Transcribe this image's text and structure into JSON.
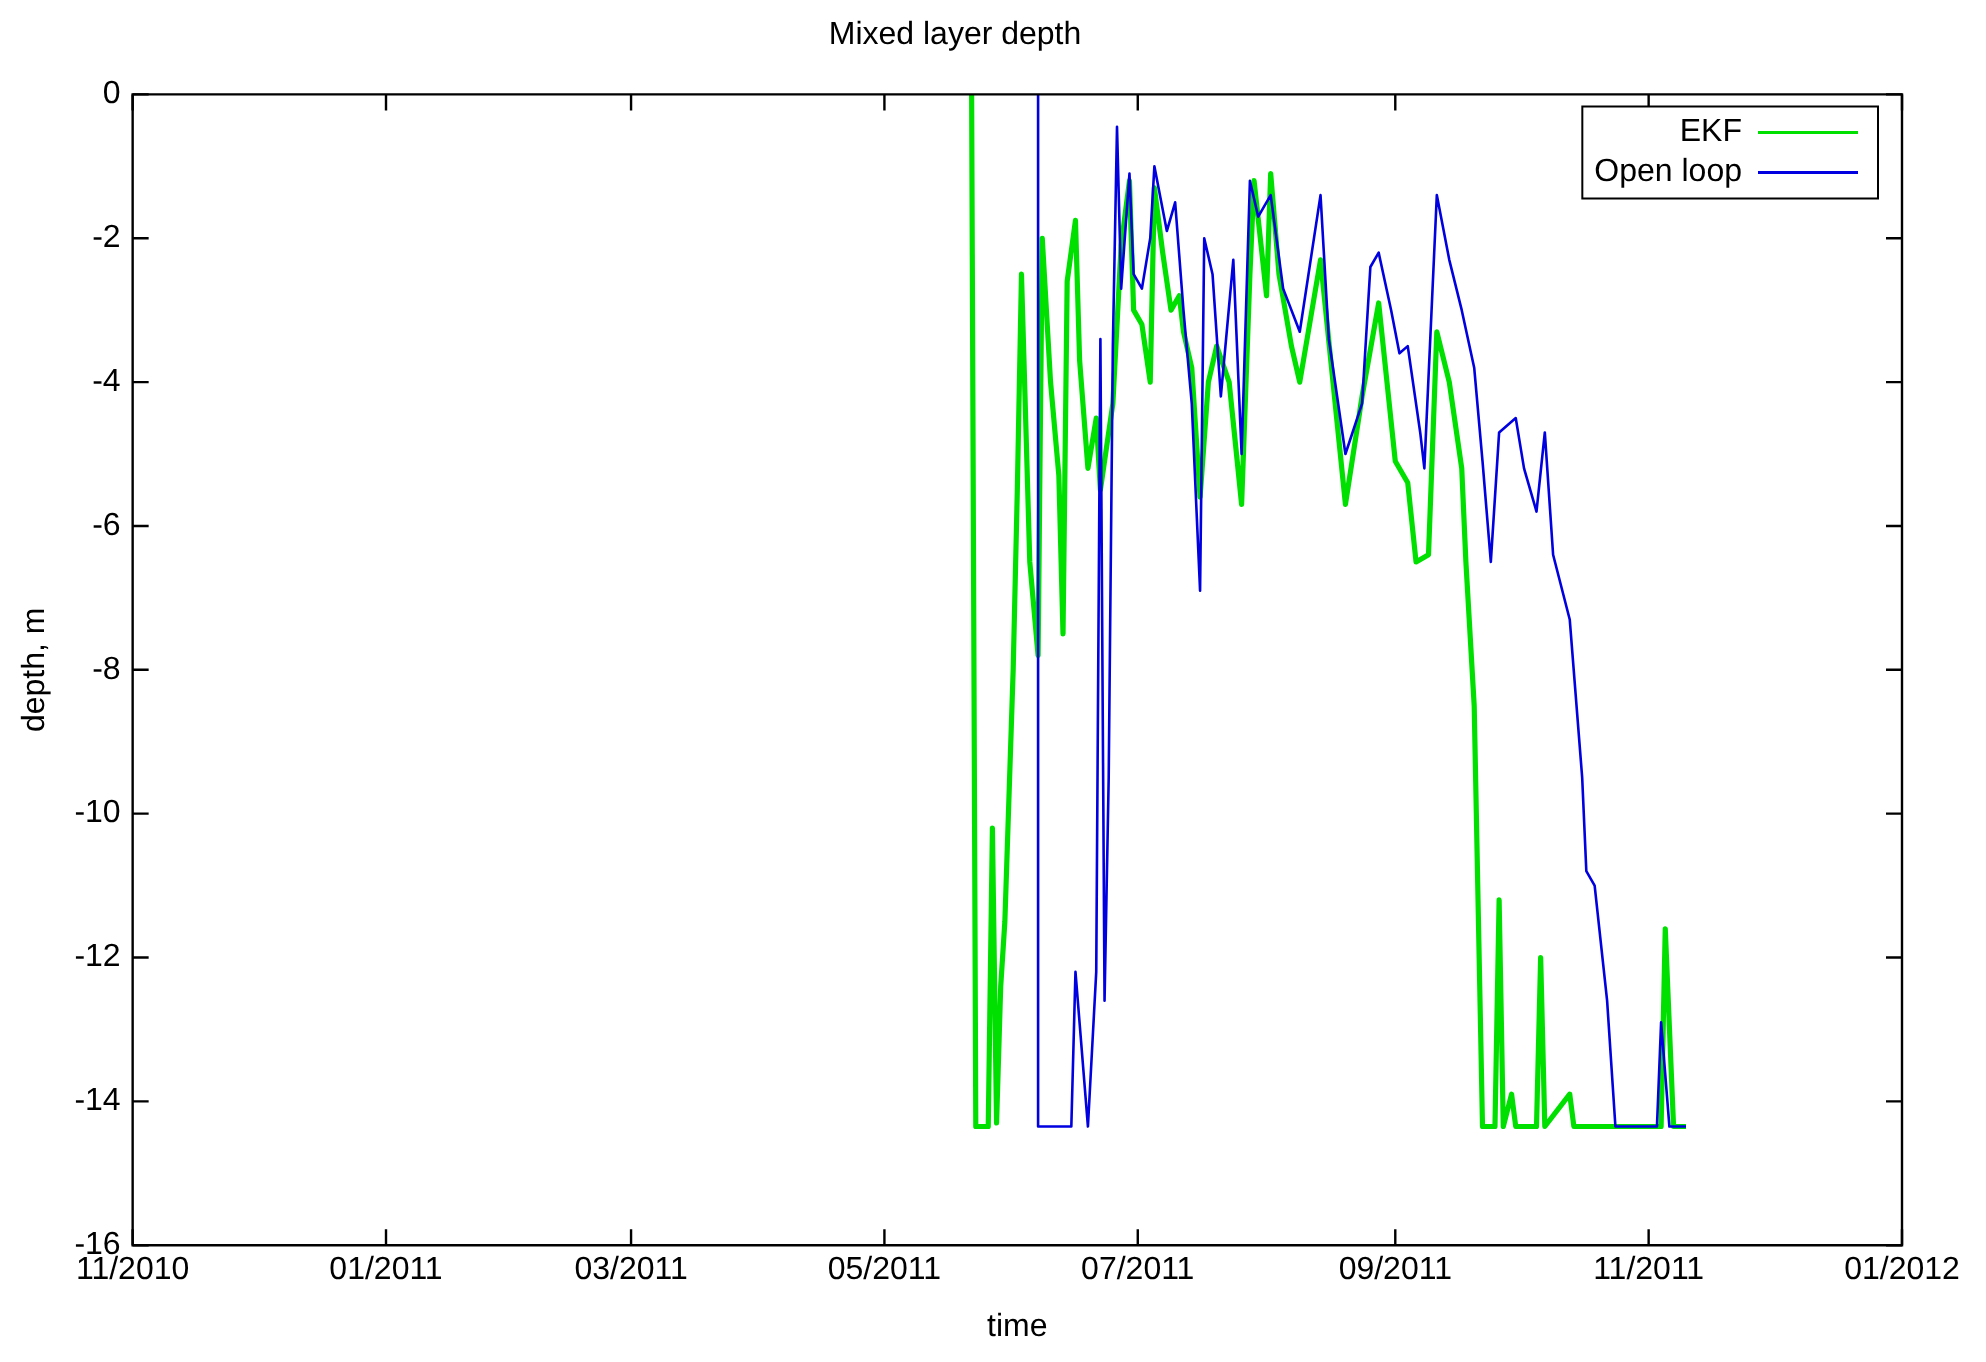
{
  "chart_data": {
    "type": "line",
    "title": "Mixed layer depth",
    "xlabel": "time",
    "ylabel": "depth, m",
    "xlim": [
      "2010-11-01",
      "2012-01-01"
    ],
    "xticks": [
      {
        "value": "2010-11-01",
        "label": "11/2010"
      },
      {
        "value": "2011-01-01",
        "label": "01/2011"
      },
      {
        "value": "2011-03-01",
        "label": "03/2011"
      },
      {
        "value": "2011-05-01",
        "label": "05/2011"
      },
      {
        "value": "2011-07-01",
        "label": "07/2011"
      },
      {
        "value": "2011-09-01",
        "label": "09/2011"
      },
      {
        "value": "2011-11-01",
        "label": "11/2011"
      },
      {
        "value": "2012-01-01",
        "label": "01/2012"
      }
    ],
    "ylim": [
      -16,
      0
    ],
    "yticks": [
      -16,
      -14,
      -12,
      -10,
      -8,
      -6,
      -4,
      -2,
      0
    ],
    "legend": "top right",
    "grid": false,
    "marker": "none",
    "line_style": "solid",
    "series": [
      {
        "name": "EKF",
        "color": "#00e000",
        "x": [
          "2011-05-22",
          "2011-05-23",
          "2011-05-26",
          "2011-05-27",
          "2011-05-28",
          "2011-05-29",
          "2011-05-30",
          "2011-06-01",
          "2011-06-02",
          "2011-06-03",
          "2011-06-05",
          "2011-06-07",
          "2011-06-08",
          "2011-06-10",
          "2011-06-12",
          "2011-06-13",
          "2011-06-14",
          "2011-06-16",
          "2011-06-17",
          "2011-06-19",
          "2011-06-21",
          "2011-06-22",
          "2011-06-25",
          "2011-06-27",
          "2011-06-29",
          "2011-06-30",
          "2011-07-02",
          "2011-07-04",
          "2011-07-05",
          "2011-07-07",
          "2011-07-09",
          "2011-07-11",
          "2011-07-12",
          "2011-07-14",
          "2011-07-16",
          "2011-07-18",
          "2011-07-20",
          "2011-07-23",
          "2011-07-26",
          "2011-07-28",
          "2011-07-29",
          "2011-08-01",
          "2011-08-02",
          "2011-08-04",
          "2011-08-07",
          "2011-08-09",
          "2011-08-14",
          "2011-08-20",
          "2011-08-24",
          "2011-08-28",
          "2011-09-01",
          "2011-09-04",
          "2011-09-06",
          "2011-09-09",
          "2011-09-11",
          "2011-09-14",
          "2011-09-17",
          "2011-09-18",
          "2011-09-20",
          "2011-09-22",
          "2011-09-25",
          "2011-09-26",
          "2011-09-27",
          "2011-09-29",
          "2011-09-30",
          "2011-10-05",
          "2011-10-06",
          "2011-10-07",
          "2011-10-13",
          "2011-10-14",
          "2011-11-04",
          "2011-11-05",
          "2011-11-07",
          "2011-11-10"
        ],
        "values": [
          0,
          -14.35,
          -14.35,
          -10.2,
          -14.3,
          -12.4,
          -11.5,
          -8.0,
          -5.5,
          -2.5,
          -6.5,
          -7.8,
          -2.0,
          -4.0,
          -5.3,
          -7.5,
          -2.6,
          -1.75,
          -3.7,
          -5.2,
          -4.5,
          -5.5,
          -4.3,
          -2.1,
          -1.2,
          -3.0,
          -3.2,
          -4.0,
          -1.3,
          -2.2,
          -3.0,
          -2.8,
          -3.3,
          -3.8,
          -5.6,
          -4.0,
          -3.5,
          -4.0,
          -5.7,
          -2.5,
          -1.2,
          -2.8,
          -1.1,
          -2.5,
          -3.5,
          -4.0,
          -2.3,
          -5.7,
          -4.2,
          -2.9,
          -5.1,
          -5.4,
          -6.5,
          -6.4,
          -3.3,
          -4.0,
          -5.2,
          -6.5,
          -8.5,
          -14.35,
          -14.35,
          -11.2,
          -14.35,
          -13.9,
          -14.35,
          -14.35,
          -12.0,
          -14.35,
          -13.9,
          -14.35,
          -14.35,
          -11.6,
          -14.35,
          -14.35
        ]
      },
      {
        "name": "Open loop",
        "color": "#0000e0",
        "x": [
          "2011-06-07",
          "2011-06-07",
          "2011-06-15",
          "2011-06-16",
          "2011-06-19",
          "2011-06-21",
          "2011-06-22",
          "2011-06-23",
          "2011-06-24",
          "2011-06-25",
          "2011-06-26",
          "2011-06-27",
          "2011-06-29",
          "2011-06-30",
          "2011-07-02",
          "2011-07-04",
          "2011-07-05",
          "2011-07-08",
          "2011-07-10",
          "2011-07-12",
          "2011-07-14",
          "2011-07-16",
          "2011-07-17",
          "2011-07-19",
          "2011-07-21",
          "2011-07-24",
          "2011-07-26",
          "2011-07-28",
          "2011-07-30",
          "2011-08-02",
          "2011-08-05",
          "2011-08-09",
          "2011-08-14",
          "2011-08-16",
          "2011-08-20",
          "2011-08-24",
          "2011-08-26",
          "2011-08-28",
          "2011-08-31",
          "2011-09-02",
          "2011-09-04",
          "2011-09-07",
          "2011-09-08",
          "2011-09-11",
          "2011-09-14",
          "2011-09-17",
          "2011-09-20",
          "2011-09-22",
          "2011-09-24",
          "2011-09-26",
          "2011-09-30",
          "2011-10-02",
          "2011-10-05",
          "2011-10-07",
          "2011-10-09",
          "2011-10-13",
          "2011-10-16",
          "2011-10-17",
          "2011-10-19",
          "2011-10-22",
          "2011-10-24",
          "2011-11-03",
          "2011-11-04",
          "2011-11-06",
          "2011-11-10"
        ],
        "values": [
          0,
          -14.35,
          -14.35,
          -12.2,
          -14.35,
          -12.2,
          -3.4,
          -12.6,
          -9.5,
          -3.5,
          -0.45,
          -2.7,
          -1.1,
          -2.5,
          -2.7,
          -2.0,
          -1.0,
          -1.9,
          -1.5,
          -3.0,
          -4.3,
          -6.9,
          -2.0,
          -2.5,
          -4.2,
          -2.3,
          -5.0,
          -1.2,
          -1.7,
          -1.4,
          -2.7,
          -3.3,
          -1.4,
          -3.4,
          -5.0,
          -4.3,
          -2.4,
          -2.2,
          -3.0,
          -3.6,
          -3.5,
          -4.7,
          -5.2,
          -1.4,
          -2.3,
          -3.0,
          -3.8,
          -5.1,
          -6.5,
          -4.7,
          -4.5,
          -5.2,
          -5.8,
          -4.7,
          -6.4,
          -7.3,
          -9.5,
          -10.8,
          -11.0,
          -12.6,
          -14.35,
          -14.35,
          -12.9,
          -14.35,
          -14.35
        ]
      }
    ]
  }
}
